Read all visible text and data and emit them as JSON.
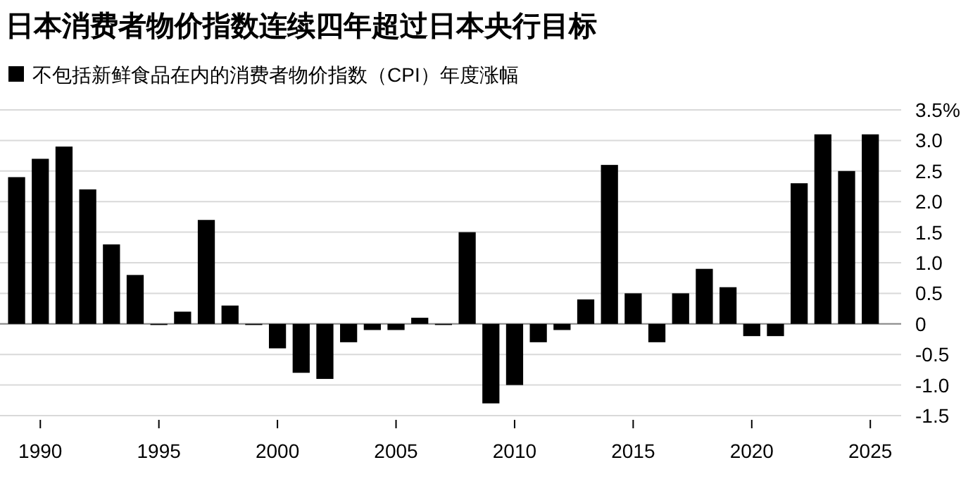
{
  "chart_data": {
    "type": "bar",
    "title": "日本消费者物价指数连续四年超过日本央行目标",
    "x": [
      1989,
      1990,
      1991,
      1992,
      1993,
      1994,
      1995,
      1996,
      1997,
      1998,
      1999,
      2000,
      2001,
      2002,
      2003,
      2004,
      2005,
      2006,
      2007,
      2008,
      2009,
      2010,
      2011,
      2012,
      2013,
      2014,
      2015,
      2016,
      2017,
      2018,
      2019,
      2020,
      2021,
      2022,
      2023,
      2024,
      2025
    ],
    "series": [
      {
        "name": "不包括新鲜食品在内的消费者物价指数（CPI）年度涨幅",
        "color": "#000000",
        "values": [
          2.4,
          2.7,
          2.9,
          2.2,
          1.3,
          0.8,
          0,
          0.2,
          1.7,
          0.3,
          0,
          -0.4,
          -0.8,
          -0.9,
          -0.3,
          -0.1,
          -0.1,
          0.1,
          0,
          1.5,
          -1.3,
          -1.0,
          -0.3,
          -0.1,
          0.4,
          2.6,
          0.5,
          -0.3,
          0.5,
          0.9,
          0.6,
          -0.2,
          -0.2,
          2.3,
          3.1,
          2.5,
          3.1
        ]
      }
    ],
    "xlim": [
      1988.3,
      2026.3
    ],
    "xticks": [
      1990,
      1995,
      2000,
      2005,
      2010,
      2015,
      2020,
      2025
    ],
    "ylim": [
      -1.5,
      3.5
    ],
    "yticks": [
      {
        "value": 3.5,
        "label": "3.5%"
      },
      {
        "value": 3.0,
        "label": "3.0"
      },
      {
        "value": 2.5,
        "label": "2.5"
      },
      {
        "value": 2.0,
        "label": "2.0"
      },
      {
        "value": 1.5,
        "label": "1.5"
      },
      {
        "value": 1.0,
        "label": "1.0"
      },
      {
        "value": 0.5,
        "label": "0.5"
      },
      0,
      {
        "value": -0.5,
        "label": "-0.5"
      },
      {
        "value": -1.0,
        "label": "-1.0"
      },
      {
        "value": -1.5,
        "label": "-1.5"
      }
    ],
    "grid": "y",
    "legend": "top left"
  }
}
